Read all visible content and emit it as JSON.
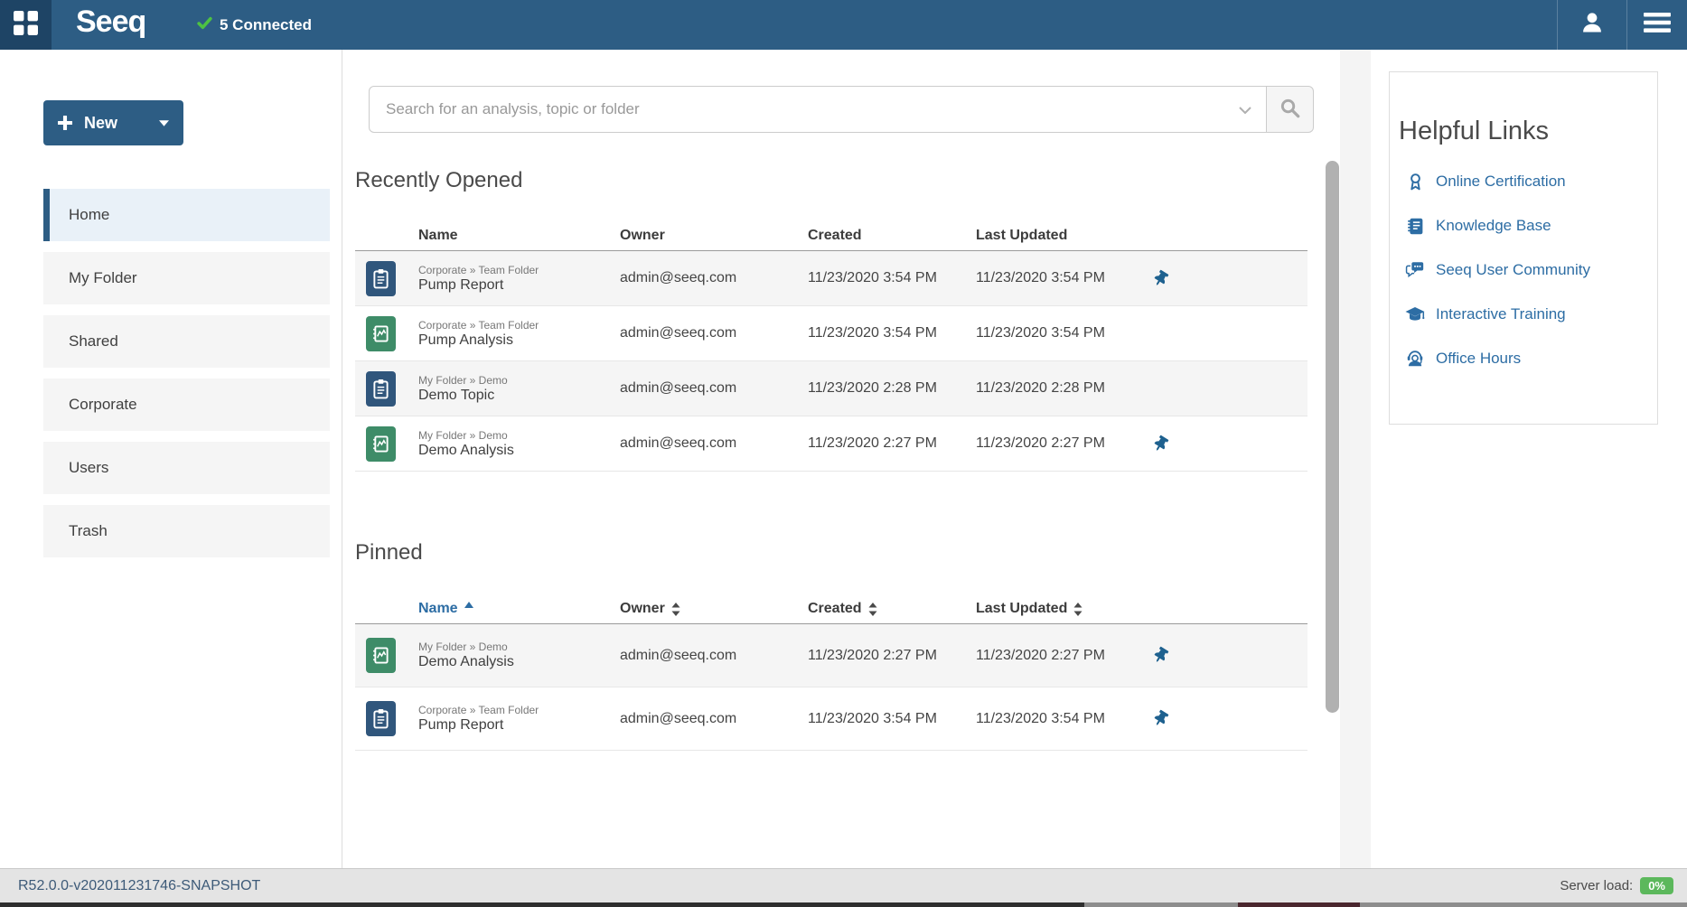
{
  "navbar": {
    "brand": "Seeq",
    "connected_label": "5 Connected"
  },
  "sidebar": {
    "new_label": "New",
    "items": [
      {
        "label": "Home",
        "active": true
      },
      {
        "label": "My Folder",
        "active": false
      },
      {
        "label": "Shared",
        "active": false
      },
      {
        "label": "Corporate",
        "active": false
      },
      {
        "label": "Users",
        "active": false
      },
      {
        "label": "Trash",
        "active": false
      }
    ]
  },
  "search": {
    "placeholder": "Search for an analysis, topic or folder"
  },
  "recently_opened": {
    "title": "Recently Opened",
    "columns": [
      {
        "label": "Name",
        "sort": null
      },
      {
        "label": "Owner",
        "sort": null
      },
      {
        "label": "Created",
        "sort": null
      },
      {
        "label": "Last Updated",
        "sort": null
      }
    ],
    "rows": [
      {
        "type": "topic",
        "path": "Corporate » Team Folder",
        "name": "Pump Report",
        "owner": "admin@seeq.com",
        "created": "11/23/2020 3:54 PM",
        "updated": "11/23/2020 3:54 PM",
        "pinned": true
      },
      {
        "type": "analysis",
        "path": "Corporate » Team Folder",
        "name": "Pump Analysis",
        "owner": "admin@seeq.com",
        "created": "11/23/2020 3:54 PM",
        "updated": "11/23/2020 3:54 PM",
        "pinned": false
      },
      {
        "type": "topic",
        "path": "My Folder » Demo",
        "name": "Demo Topic",
        "owner": "admin@seeq.com",
        "created": "11/23/2020 2:28 PM",
        "updated": "11/23/2020 2:28 PM",
        "pinned": false
      },
      {
        "type": "analysis",
        "path": "My Folder » Demo",
        "name": "Demo Analysis",
        "owner": "admin@seeq.com",
        "created": "11/23/2020 2:27 PM",
        "updated": "11/23/2020 2:27 PM",
        "pinned": true
      }
    ]
  },
  "pinned": {
    "title": "Pinned",
    "columns": [
      {
        "label": "Name",
        "sort": "asc"
      },
      {
        "label": "Owner",
        "sort": "both"
      },
      {
        "label": "Created",
        "sort": "both"
      },
      {
        "label": "Last Updated",
        "sort": "both"
      }
    ],
    "rows": [
      {
        "type": "analysis",
        "path": "My Folder » Demo",
        "name": "Demo Analysis",
        "owner": "admin@seeq.com",
        "created": "11/23/2020 2:27 PM",
        "updated": "11/23/2020 2:27 PM",
        "pinned": true
      },
      {
        "type": "topic",
        "path": "Corporate » Team Folder",
        "name": "Pump Report",
        "owner": "admin@seeq.com",
        "created": "11/23/2020 3:54 PM",
        "updated": "11/23/2020 3:54 PM",
        "pinned": true
      }
    ]
  },
  "helpful_links": {
    "title": "Helpful Links",
    "links": [
      {
        "icon": "award-icon",
        "label": "Online Certification"
      },
      {
        "icon": "journal-icon",
        "label": "Knowledge Base"
      },
      {
        "icon": "chat-icon",
        "label": "Seeq User Community"
      },
      {
        "icon": "graduation-cap-icon",
        "label": "Interactive Training"
      },
      {
        "icon": "headset-icon",
        "label": "Office Hours"
      }
    ]
  },
  "statusbar": {
    "version": "R52.0.0-v202011231746-SNAPSHOT",
    "server_load_label": "Server load:",
    "server_load_value": "0%"
  },
  "colors": {
    "navbar": "#2d5d84",
    "navbar_dark": "#1e4465",
    "link_blue": "#2d6da4",
    "topic_icon_bg": "#30567c",
    "analysis_icon_bg": "#3e8c68",
    "pin_blue": "#1e618f",
    "active_item_bg": "#e9f1f8",
    "connected_green": "#4dc242",
    "badge_green": "#5cb85c"
  }
}
